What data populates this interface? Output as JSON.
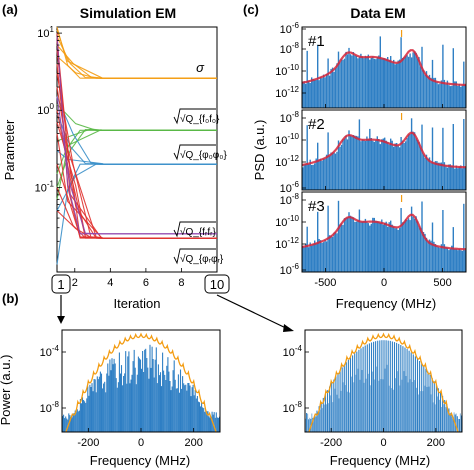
{
  "panels": {
    "a": "(a)",
    "b": "(b)",
    "c": "(c)"
  },
  "colors": {
    "sigma": "#f39c12",
    "green": "#59b846",
    "blue_param": "#3a8fc9",
    "purple": "#8e44ad",
    "red": "#e0312e",
    "psd_blue": "#2f7fc4",
    "psd_red": "#d6263a",
    "envelope": "#f39c12"
  },
  "chart_data": [
    {
      "type": "line",
      "title": "Simulation EM",
      "xlabel": "Iteration",
      "ylabel": "Parameter",
      "xlim": [
        1,
        10
      ],
      "ylim": [
        0.008,
        12
      ],
      "yscale": "log",
      "xticks": [
        "2",
        "4",
        "6",
        "8"
      ],
      "yticks": [
        "10^0",
        "10^-1",
        "10^1"
      ],
      "x": [
        1,
        2,
        3,
        4,
        5,
        6,
        7,
        8,
        9,
        10
      ],
      "series": [
        {
          "name": "σ",
          "values": [
            12,
            3.8,
            2.6,
            2.6,
            2.6,
            2.6,
            2.6,
            2.6,
            2.6,
            2.6
          ]
        },
        {
          "name": "√Q_{f0f0}",
          "values": [
            0.06,
            0.55,
            0.55,
            0.55,
            0.55,
            0.55,
            0.55,
            0.55,
            0.55,
            0.55
          ]
        },
        {
          "name": "√Q_{φ0φ0}",
          "values": [
            0.01,
            0.2,
            0.2,
            0.2,
            0.2,
            0.2,
            0.2,
            0.2,
            0.2,
            0.2
          ]
        },
        {
          "name": "√Q_{frfr}",
          "values": [
            10,
            0.025,
            0.025,
            0.025,
            0.025,
            0.025,
            0.025,
            0.025,
            0.025,
            0.025
          ]
        },
        {
          "name": "√Q_{φrφr}",
          "values": [
            8,
            0.02,
            0.02,
            0.02,
            0.02,
            0.02,
            0.02,
            0.02,
            0.02,
            0.02
          ]
        }
      ],
      "markers": {
        "start": "1",
        "end": "10"
      },
      "series_labels": [
        "σ",
        "√Q_{f₀f₀}",
        "√Q_{φ₀φ₀}",
        "√Q_{fᵣfᵣ}",
        "√Q_{φᵣφᵣ}"
      ]
    },
    {
      "type": "area",
      "title": "Data EM",
      "xlabel": "Frequency (MHz)",
      "ylabel": "PSD (a.u.)",
      "xlim": [
        -700,
        700
      ],
      "xticks": [
        "-500",
        "0",
        "500"
      ],
      "yscale": "log",
      "subplots": [
        {
          "name": "#1",
          "yticks": [
            "10^-6",
            "10^-8",
            "10^-10",
            "10^-12"
          ]
        },
        {
          "name": "#2",
          "yticks": [
            "10^-6",
            "10^-8",
            "10^-10",
            "10^-12"
          ]
        },
        {
          "name": "#3",
          "yticks": [
            "10^-6",
            "10^-8",
            "10^-10",
            "10^-12"
          ]
        }
      ]
    },
    {
      "type": "area",
      "xlabel": "Frequency (MHz)",
      "ylabel": "Power (a.u.)",
      "xlim": [
        -300,
        300
      ],
      "xticks": [
        "-200",
        "0",
        "200"
      ],
      "yscale": "log",
      "yticks": [
        "10^-4",
        "10^-8"
      ],
      "subplots": [
        {
          "name": "iteration 1"
        },
        {
          "name": "iteration 10"
        }
      ]
    }
  ]
}
